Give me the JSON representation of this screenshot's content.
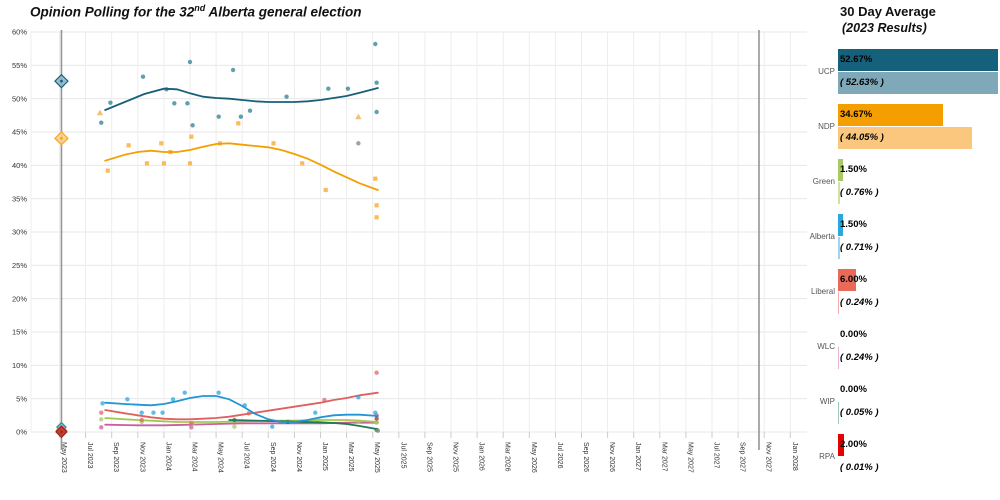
{
  "title": {
    "prefix": "Opinion Polling for the 32",
    "sup": "nd",
    "suffix": " Alberta general election"
  },
  "panel": {
    "heading": "30 Day Average",
    "subheading": "(2023 Results)",
    "max_value": 52.67,
    "parties": [
      {
        "name": "UCP",
        "avg": "52.67%",
        "avg_value": 52.67,
        "result": "( 52.63% )",
        "result_value": 52.63,
        "color": "#15607a",
        "light": "#7fa8b8"
      },
      {
        "name": "NDP",
        "avg": "34.67%",
        "avg_value": 34.67,
        "result": "( 44.05% )",
        "result_value": 44.05,
        "color": "#f59e00",
        "light": "#fbc77e"
      },
      {
        "name": "Green",
        "avg": "1.50%",
        "avg_value": 1.5,
        "result": "( 0.76% )",
        "result_value": 0.76,
        "color": "#a9c964",
        "light": "#cfe3a0"
      },
      {
        "name": "Alberta",
        "avg": "1.50%",
        "avg_value": 1.5,
        "result": "( 0.71% )",
        "result_value": 0.71,
        "color": "#29a8dd",
        "light": "#9fd6ef"
      },
      {
        "name": "Liberal",
        "avg": "6.00%",
        "avg_value": 6.0,
        "result": "( 0.24% )",
        "result_value": 0.24,
        "color": "#ea6a5a",
        "light": "#f5b0a8"
      },
      {
        "name": "WLC",
        "avg": "0.00%",
        "avg_value": 0.0,
        "result": "( 0.24% )",
        "result_value": 0.24,
        "color": "#c95fa0",
        "light": "#e8b3d3"
      },
      {
        "name": "WIP",
        "avg": "0.00%",
        "avg_value": 0.0,
        "result": "( 0.05% )",
        "result_value": 0.05,
        "color": "#1e7b51",
        "light": "#9cc9b3"
      },
      {
        "name": "RPA",
        "avg": "2.00%",
        "avg_value": 2.0,
        "result": "( 0.01% )",
        "result_value": 0.01,
        "color": "#e60000",
        "light": "#f5a3a3"
      }
    ]
  },
  "chart_data": {
    "type": "scatter",
    "title": "Opinion Polling for the 32nd Alberta general election",
    "x_unit": "months since May 2023",
    "x_axis": {
      "tick_step_months": 2,
      "tick_labels": [
        "May 2023",
        "Jul 2023",
        "Sep 2023",
        "Nov 2023",
        "Jan 2024",
        "Mar 2024",
        "May 2024",
        "Jul 2024",
        "Sep 2024",
        "Nov 2024",
        "Jan 2025",
        "Mar 2025",
        "May 2025",
        "Jul 2025",
        "Sep 2025",
        "Nov 2025",
        "Jan 2026",
        "Mar 2026",
        "May 2026",
        "Jul 2026",
        "Sep 2026",
        "Nov 2026",
        "Jan 2027",
        "Mar 2027",
        "May 2027",
        "Jul 2027",
        "Sep 2027",
        "Nov 2027",
        "Jan 2028"
      ]
    },
    "y_axis": {
      "min": 0,
      "max": 60,
      "tick_step": 5,
      "tick_labels": [
        "0%",
        "5%",
        "10%",
        "15%",
        "20%",
        "25%",
        "30%",
        "35%",
        "40%",
        "45%",
        "50%",
        "55%",
        "60%"
      ]
    },
    "grid": true,
    "election_lines": [
      {
        "label": "2023 election (May 2023)",
        "m": 0.15
      },
      {
        "label": "next fixed election (Oct 2027)",
        "m": 53.6
      }
    ],
    "election_results_2023": [
      {
        "party": "UCP",
        "value": 52.63,
        "fill": "#8fb4c4",
        "stroke": "#16607a",
        "size": 6.5
      },
      {
        "party": "NDP",
        "value": 44.05,
        "fill": "#fbd08c",
        "stroke": "#f5a623",
        "size": 6.5
      },
      {
        "party": "Green",
        "value": 0.76,
        "fill": "#cfe3a0",
        "stroke": "#8ab33f",
        "size": 4.5
      },
      {
        "party": "Alberta",
        "value": 0.71,
        "fill": "#9fd6ef",
        "stroke": "#1f8fc4",
        "size": 4.5
      },
      {
        "party": "WLC",
        "value": 0.24,
        "fill": "#e8b3d3",
        "stroke": "#c95fa0",
        "size": 4.0
      },
      {
        "party": "WIP",
        "value": 0.05,
        "fill": "#9cc9b3",
        "stroke": "#1e7b51",
        "size": 4.0
      },
      {
        "party": "Liberal",
        "value": 0.24,
        "fill": "#f0a09a",
        "stroke": "#d9534f",
        "size": 5.0
      },
      {
        "party": "RPA",
        "value": 0.01,
        "fill": "#c0392b",
        "stroke": "#922b21",
        "size": 5.5
      }
    ],
    "series": [
      {
        "name": "NDP",
        "color": "#f5a623",
        "line_color": "#f59e00",
        "shape": "square",
        "points": [
          [
            3.7,
            39.2
          ],
          [
            5.3,
            43.0
          ],
          [
            6.7,
            40.3
          ],
          [
            7.8,
            43.3
          ],
          [
            8.0,
            40.3
          ],
          [
            8.5,
            42.0
          ],
          [
            10.0,
            40.3
          ],
          [
            10.1,
            44.3
          ],
          [
            12.3,
            43.3
          ],
          [
            13.7,
            46.3
          ],
          [
            16.4,
            43.3
          ],
          [
            18.6,
            40.3
          ],
          [
            20.4,
            36.3
          ],
          [
            24.2,
            38.0
          ],
          [
            24.3,
            34.0
          ],
          [
            24.3,
            32.2
          ]
        ],
        "trend": [
          [
            3.5,
            40.7
          ],
          [
            5,
            41.6
          ],
          [
            6,
            42.0
          ],
          [
            7,
            42.2
          ],
          [
            8,
            42.0
          ],
          [
            9,
            42.0
          ],
          [
            10,
            42.3
          ],
          [
            11,
            42.8
          ],
          [
            12,
            43.2
          ],
          [
            13,
            43.3
          ],
          [
            14,
            43.1
          ],
          [
            15,
            42.9
          ],
          [
            16,
            42.7
          ],
          [
            17,
            42.3
          ],
          [
            18,
            41.7
          ],
          [
            19,
            41.0
          ],
          [
            20,
            40.1
          ],
          [
            21,
            39.1
          ],
          [
            22,
            38.2
          ],
          [
            23,
            37.3
          ],
          [
            24.4,
            36.3
          ]
        ]
      },
      {
        "name": "UCP",
        "color": "#2a7f96",
        "line_color": "#16607a",
        "shape": "circle",
        "points": [
          [
            3.2,
            46.4
          ],
          [
            3.9,
            49.4
          ],
          [
            6.4,
            53.3
          ],
          [
            8.2,
            51.4
          ],
          [
            8.8,
            49.3
          ],
          [
            9.8,
            49.3
          ],
          [
            10.0,
            55.5
          ],
          [
            10.2,
            46.0
          ],
          [
            12.2,
            47.3
          ],
          [
            13.3,
            54.3
          ],
          [
            13.9,
            47.3
          ],
          [
            14.6,
            48.2
          ],
          [
            17.4,
            50.3
          ],
          [
            20.6,
            51.5
          ],
          [
            22.1,
            51.5
          ],
          [
            24.2,
            58.2
          ],
          [
            24.3,
            52.4
          ],
          [
            24.3,
            48.0
          ]
        ],
        "trend": [
          [
            3.5,
            48.3
          ],
          [
            5,
            49.5
          ],
          [
            6.5,
            50.7
          ],
          [
            8,
            51.5
          ],
          [
            9,
            51.4
          ],
          [
            10,
            50.8
          ],
          [
            11,
            50.3
          ],
          [
            12,
            50.1
          ],
          [
            13,
            50.0
          ],
          [
            14,
            49.8
          ],
          [
            15,
            49.6
          ],
          [
            16,
            49.5
          ],
          [
            17,
            49.5
          ],
          [
            18,
            49.5
          ],
          [
            19,
            49.6
          ],
          [
            20,
            49.8
          ],
          [
            21,
            50.1
          ],
          [
            22,
            50.4
          ],
          [
            23,
            50.9
          ],
          [
            24.4,
            51.6
          ]
        ]
      },
      {
        "name": "WLC",
        "color": "#c95fa0",
        "line_color": "#c95fa0",
        "shape": "circle",
        "points": [
          [
            3.2,
            0.7
          ],
          [
            10.1,
            0.7
          ],
          [
            24.3,
            2.5
          ]
        ],
        "trend": [
          [
            3.5,
            1.1
          ],
          [
            6,
            1.0
          ],
          [
            8,
            1.0
          ],
          [
            10,
            1.1
          ],
          [
            12,
            1.2
          ],
          [
            14,
            1.3
          ],
          [
            16,
            1.3
          ],
          [
            18,
            1.3
          ],
          [
            20,
            1.3
          ],
          [
            22,
            1.4
          ],
          [
            24.4,
            1.4
          ]
        ]
      },
      {
        "name": "Green",
        "color": "#a9c964",
        "line_color": "#a2c94f",
        "shape": "circle",
        "points": [
          [
            3.2,
            1.9
          ],
          [
            6.3,
            1.5
          ],
          [
            10.2,
            1.2
          ],
          [
            13.4,
            0.8
          ],
          [
            19.8,
            1.9
          ],
          [
            22.9,
            1.5
          ],
          [
            24.3,
            1.4
          ]
        ],
        "trend": [
          [
            3.5,
            2.1
          ],
          [
            5,
            1.9
          ],
          [
            6,
            1.8
          ],
          [
            7,
            1.7
          ],
          [
            8,
            1.6
          ],
          [
            9,
            1.5
          ],
          [
            10,
            1.5
          ],
          [
            12,
            1.5
          ],
          [
            14,
            1.6
          ],
          [
            16,
            1.7
          ],
          [
            18,
            1.7
          ],
          [
            20,
            1.8
          ],
          [
            22,
            1.8
          ],
          [
            23,
            1.7
          ],
          [
            24.4,
            1.5
          ]
        ]
      },
      {
        "name": "Liberal",
        "color": "#e06666",
        "line_color": "#e05f5f",
        "shape": "circle",
        "points": [
          [
            3.2,
            2.9
          ],
          [
            6.3,
            1.8
          ],
          [
            10.1,
            1.3
          ],
          [
            14.5,
            2.8
          ],
          [
            20.3,
            4.8
          ],
          [
            24.3,
            8.9
          ]
        ],
        "trend": [
          [
            3.5,
            3.3
          ],
          [
            5,
            2.8
          ],
          [
            6,
            2.5
          ],
          [
            7,
            2.2
          ],
          [
            8,
            2.0
          ],
          [
            9,
            1.9
          ],
          [
            10,
            1.9
          ],
          [
            11,
            2.0
          ],
          [
            12,
            2.1
          ],
          [
            13,
            2.3
          ],
          [
            14,
            2.6
          ],
          [
            15,
            2.9
          ],
          [
            16,
            3.2
          ],
          [
            17,
            3.5
          ],
          [
            18,
            3.8
          ],
          [
            19,
            4.1
          ],
          [
            20,
            4.4
          ],
          [
            21,
            4.8
          ],
          [
            22,
            5.1
          ],
          [
            23,
            5.5
          ],
          [
            24.4,
            5.9
          ]
        ]
      },
      {
        "name": "WIP",
        "color": "#1e7b51",
        "line_color": "#1e7b51",
        "shape": "circle",
        "points": [
          [
            13.4,
            1.8
          ],
          [
            17.5,
            1.5
          ],
          [
            24.3,
            0.3
          ]
        ],
        "trend": [
          [
            13,
            1.8
          ],
          [
            14,
            1.75
          ],
          [
            15,
            1.7
          ],
          [
            16,
            1.65
          ],
          [
            17,
            1.6
          ],
          [
            18,
            1.55
          ],
          [
            19,
            1.5
          ],
          [
            20,
            1.45
          ],
          [
            21,
            1.35
          ],
          [
            22,
            1.2
          ],
          [
            23,
            0.9
          ],
          [
            24.4,
            0.4
          ]
        ]
      },
      {
        "name": "Alberta",
        "color": "#29a8dd",
        "line_color": "#2196d4",
        "shape": "circle",
        "points": [
          [
            3.3,
            4.3
          ],
          [
            5.2,
            4.9
          ],
          [
            6.3,
            2.9
          ],
          [
            7.2,
            2.9
          ],
          [
            7.9,
            2.9
          ],
          [
            8.7,
            4.9
          ],
          [
            9.6,
            5.9
          ],
          [
            12.2,
            5.9
          ],
          [
            14.2,
            4.0
          ],
          [
            16.3,
            0.8
          ],
          [
            19.6,
            2.9
          ],
          [
            22.9,
            5.2
          ],
          [
            24.2,
            2.9
          ]
        ],
        "trend": [
          [
            3.5,
            4.4
          ],
          [
            5,
            4.2
          ],
          [
            6,
            4.1
          ],
          [
            7,
            4.0
          ],
          [
            8,
            4.2
          ],
          [
            9,
            4.6
          ],
          [
            10,
            5.1
          ],
          [
            11,
            5.4
          ],
          [
            12,
            5.4
          ],
          [
            13,
            4.9
          ],
          [
            14,
            3.9
          ],
          [
            15,
            2.7
          ],
          [
            16,
            1.9
          ],
          [
            17,
            1.5
          ],
          [
            18,
            1.5
          ],
          [
            19,
            1.8
          ],
          [
            20,
            2.2
          ],
          [
            21,
            2.5
          ],
          [
            22,
            2.6
          ],
          [
            23,
            2.6
          ],
          [
            24.4,
            2.4
          ]
        ]
      }
    ],
    "extra_points": [
      {
        "name": "triangle-marker",
        "color": "#f0b75a",
        "shape": "triangle",
        "m": 3.1,
        "v": 47.9
      },
      {
        "name": "triangle-marker",
        "color": "#f0b75a",
        "shape": "triangle",
        "m": 22.9,
        "v": 47.3
      },
      {
        "name": "gray-marker",
        "color": "#8a8a8a",
        "shape": "circle",
        "m": 22.9,
        "v": 43.3
      },
      {
        "name": "gray-marker",
        "color": "#8a8a8a",
        "shape": "circle",
        "m": 24.4,
        "v": 0.2
      },
      {
        "name": "rpa-marker",
        "color": "#b03a2e",
        "shape": "circle",
        "m": 24.3,
        "v": 2.0
      }
    ]
  }
}
